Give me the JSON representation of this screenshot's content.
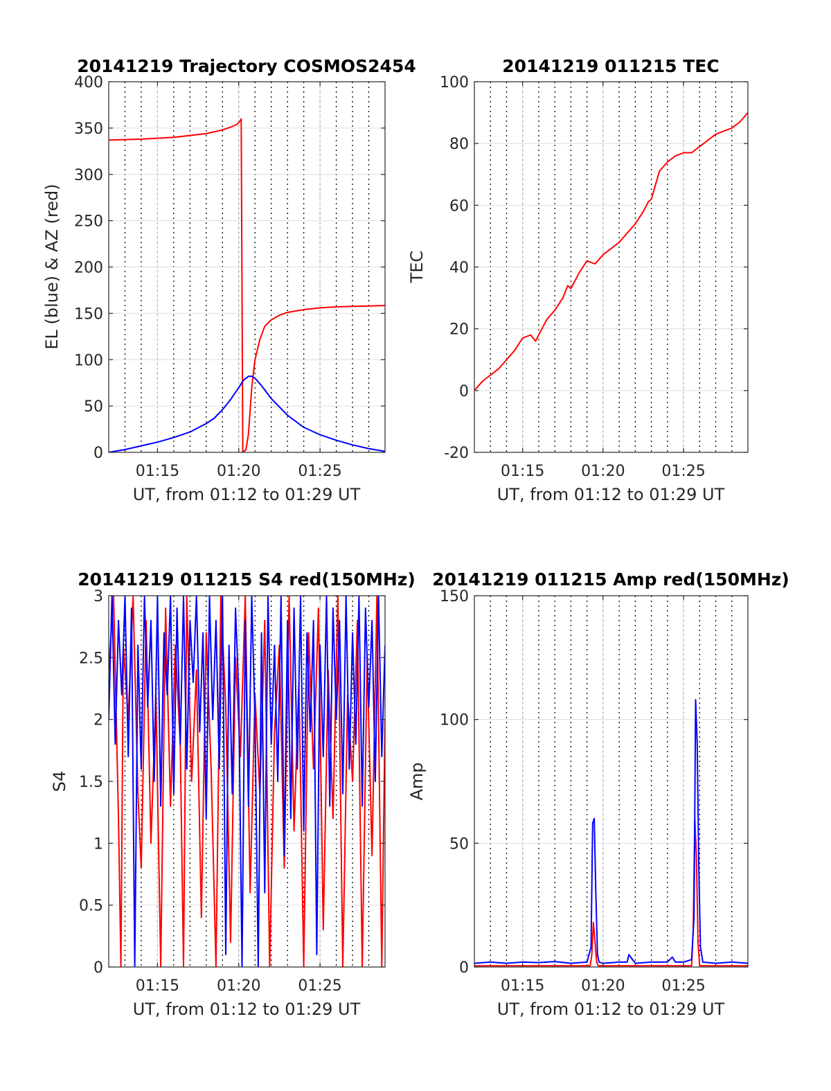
{
  "figure": {
    "background": "#ffffff"
  },
  "chart_data": [
    {
      "id": "trajectory",
      "type": "line",
      "title": "20141219 Trajectory COSMOS2454",
      "xlabel": "UT, from 01:12 to 01:29 UT",
      "ylabel": "EL (blue) & AZ (red)",
      "xlim": [
        0,
        17
      ],
      "ylim": [
        0,
        400
      ],
      "x_units": "minutes after 01:12 UT",
      "xticks": [
        3,
        8,
        13
      ],
      "xtick_labels": [
        "01:15",
        "01:20",
        "01:25"
      ],
      "yticks": [
        0,
        50,
        100,
        150,
        200,
        250,
        300,
        350,
        400
      ],
      "ytick_labels": [
        "0",
        "50",
        "100",
        "150",
        "200",
        "250",
        "300",
        "350",
        "400"
      ],
      "minute_gridlines": true,
      "grid": true,
      "series": [
        {
          "name": "AZ (red)",
          "color": "#ff0000",
          "x": [
            0,
            2,
            4,
            6,
            7,
            7.5,
            7.9,
            8.1,
            8.15,
            8.25,
            8.45,
            8.6,
            8.8,
            9.0,
            9.3,
            9.6,
            10.0,
            10.5,
            11.0,
            12.0,
            13.0,
            14.0,
            15.0,
            16.0,
            17.0
          ],
          "values": [
            337,
            338,
            340,
            344,
            348,
            351,
            354,
            358,
            360,
            0,
            3,
            20,
            70,
            100,
            122,
            136,
            143,
            148,
            151,
            154,
            156,
            157,
            157.5,
            158,
            158.5
          ]
        },
        {
          "name": "EL (blue)",
          "color": "#0000ff",
          "x": [
            0,
            1,
            2,
            3,
            4,
            5,
            6,
            6.5,
            7,
            7.5,
            8,
            8.3,
            8.6,
            8.8,
            9.0,
            9.4,
            10.0,
            11.0,
            12.0,
            13.0,
            14.0,
            15.0,
            16.0,
            17.0
          ],
          "values": [
            0,
            3,
            7,
            11,
            16,
            22,
            31,
            37,
            46,
            57,
            70,
            78,
            82,
            82,
            80,
            72,
            58,
            40,
            27,
            19,
            13,
            8,
            4,
            1
          ]
        }
      ]
    },
    {
      "id": "tec",
      "type": "line",
      "title": "20141219 011215 TEC",
      "xlabel": "UT, from 01:12 to 01:29 UT",
      "ylabel": "TEC",
      "xlim": [
        0,
        17
      ],
      "ylim": [
        -20,
        100
      ],
      "x_units": "minutes after 01:12 UT",
      "xticks": [
        3,
        8,
        13
      ],
      "xtick_labels": [
        "01:15",
        "01:20",
        "01:25"
      ],
      "yticks": [
        -20,
        0,
        20,
        40,
        60,
        80,
        100
      ],
      "ytick_labels": [
        "-20",
        "0",
        "20",
        "40",
        "60",
        "80",
        "100"
      ],
      "minute_gridlines": true,
      "grid": true,
      "series": [
        {
          "color": "#ff0000",
          "x": [
            0,
            0.5,
            1,
            1.5,
            2,
            2.5,
            3,
            3.5,
            3.8,
            4,
            4.5,
            5,
            5.5,
            5.8,
            6,
            6.5,
            7,
            7.5,
            8,
            8.5,
            9,
            9.5,
            10,
            10.5,
            10.8,
            11,
            11.5,
            12,
            12.5,
            13,
            13.5,
            14,
            14.5,
            15,
            15.5,
            16,
            16.5,
            17
          ],
          "values": [
            0,
            3,
            5,
            7,
            10,
            13,
            17,
            18,
            16,
            18,
            23,
            26,
            30,
            34,
            33,
            38,
            42,
            41,
            44,
            46,
            48,
            51,
            54,
            58,
            61,
            62,
            71,
            74,
            76,
            77,
            77,
            79,
            81,
            83,
            84,
            85,
            87,
            90
          ]
        }
      ]
    },
    {
      "id": "s4",
      "type": "line",
      "title": "20141219 011215 S4 red(150MHz)",
      "xlabel": "UT, from 01:12 to 01:29 UT",
      "ylabel": "S4",
      "xlim": [
        0,
        17
      ],
      "ylim": [
        0,
        3
      ],
      "x_units": "minutes after 01:12 UT",
      "xticks": [
        3,
        8,
        13
      ],
      "xtick_labels": [
        "01:15",
        "01:20",
        "01:25"
      ],
      "yticks": [
        0,
        0.5,
        1,
        1.5,
        2,
        2.5,
        3
      ],
      "ytick_labels": [
        "0",
        "0.5",
        "1",
        "1.5",
        "2",
        "2.5",
        "3"
      ],
      "minute_gridlines": true,
      "grid": true,
      "series": [
        {
          "color": "#ff0000",
          "x": [
            0,
            0.3,
            0.6,
            0.75,
            0.9,
            1.2,
            1.5,
            1.8,
            2.0,
            2.3,
            2.6,
            2.9,
            3.2,
            3.5,
            3.8,
            4.1,
            4.4,
            4.6,
            4.8,
            5.1,
            5.4,
            5.7,
            6.0,
            6.3,
            6.6,
            6.9,
            7.2,
            7.5,
            7.8,
            8.1,
            8.4,
            8.7,
            9.0,
            9.3,
            9.6,
            9.9,
            10.2,
            10.5,
            10.8,
            11.1,
            11.4,
            11.7,
            12.0,
            12.3,
            12.6,
            12.9,
            13.2,
            13.5,
            13.8,
            14.1,
            14.4,
            14.7,
            15.0,
            15.3,
            15.6,
            15.9,
            16.2,
            16.5,
            16.8,
            17.0
          ],
          "values": [
            2.4,
            3.0,
            1.2,
            0,
            2.6,
            2.0,
            3.0,
            1.4,
            0.8,
            2.8,
            1.0,
            2.2,
            0,
            2.9,
            1.3,
            2.6,
            1.8,
            0,
            3.0,
            1.5,
            2.4,
            0.4,
            2.7,
            1.6,
            0,
            3.0,
            2.1,
            0.2,
            2.5,
            1.7,
            3.0,
            0.6,
            2.2,
            1.4,
            2.8,
            0,
            1.9,
            2.6,
            0.8,
            3.0,
            1.1,
            2.3,
            0,
            2.7,
            1.6,
            2.9,
            0.3,
            2.4,
            1.2,
            3.0,
            0,
            2.2,
            1.5,
            2.8,
            0,
            2.5,
            0.9,
            3.0,
            0,
            2.0
          ]
        },
        {
          "color": "#0000ff",
          "x": [
            0,
            0.2,
            0.4,
            0.6,
            0.8,
            1.0,
            1.2,
            1.4,
            1.6,
            1.8,
            2.0,
            2.2,
            2.4,
            2.6,
            2.8,
            3.0,
            3.2,
            3.4,
            3.6,
            3.8,
            4.0,
            4.2,
            4.4,
            4.6,
            4.8,
            5.0,
            5.2,
            5.4,
            5.6,
            5.8,
            6.0,
            6.2,
            6.4,
            6.6,
            6.8,
            7.0,
            7.2,
            7.4,
            7.6,
            7.8,
            8.0,
            8.2,
            8.4,
            8.6,
            8.8,
            9.0,
            9.2,
            9.4,
            9.6,
            9.8,
            10.0,
            10.2,
            10.4,
            10.6,
            10.8,
            11.0,
            11.2,
            11.4,
            11.6,
            11.8,
            12.0,
            12.2,
            12.4,
            12.6,
            12.8,
            13.0,
            13.2,
            13.4,
            13.6,
            13.8,
            14.0,
            14.2,
            14.4,
            14.6,
            14.8,
            15.0,
            15.2,
            15.4,
            15.6,
            15.8,
            16.0,
            16.2,
            16.4,
            16.6,
            16.8,
            17.0
          ],
          "values": [
            2.0,
            3.0,
            1.8,
            2.8,
            2.2,
            3.0,
            1.7,
            2.9,
            0,
            2.6,
            1.6,
            3.0,
            2.1,
            2.8,
            1.5,
            3.0,
            1.3,
            2.7,
            2.2,
            3.0,
            1.4,
            2.9,
            1.8,
            3.0,
            1.6,
            2.8,
            2.3,
            3.0,
            1.9,
            2.7,
            1.2,
            3.0,
            2.0,
            2.8,
            1.6,
            3.0,
            0.1,
            2.6,
            1.4,
            2.9,
            2.2,
            0,
            2.8,
            1.3,
            3.0,
            2.0,
            0,
            2.7,
            0.6,
            3.0,
            1.8,
            2.6,
            1.5,
            3.0,
            0.9,
            2.8,
            1.2,
            2.9,
            1.6,
            3.0,
            1.1,
            2.7,
            1.9,
            2.8,
            0.1,
            2.6,
            1.7,
            3.0,
            1.3,
            2.9,
            2.0,
            2.8,
            1.4,
            3.0,
            1.6,
            2.7,
            1.8,
            3.0,
            1.3,
            2.9,
            2.1,
            2.8,
            1.5,
            3.0,
            1.7,
            2.6
          ]
        }
      ]
    },
    {
      "id": "amp",
      "type": "line",
      "title": "20141219 011215 Amp red(150MHz)",
      "xlabel": "UT, from 01:12 to 01:29 UT",
      "ylabel": "Amp",
      "xlim": [
        0,
        17
      ],
      "ylim": [
        0,
        150
      ],
      "x_units": "minutes after 01:12 UT",
      "xticks": [
        3,
        8,
        13
      ],
      "xtick_labels": [
        "01:15",
        "01:20",
        "01:25"
      ],
      "yticks": [
        0,
        50,
        100,
        150
      ],
      "ytick_labels": [
        "0",
        "50",
        "100",
        "150"
      ],
      "minute_gridlines": true,
      "grid": true,
      "series": [
        {
          "color": "#ff0000",
          "x": [
            0,
            7.2,
            7.3,
            7.4,
            7.5,
            7.6,
            7.7,
            8.0,
            13.5,
            13.6,
            13.7,
            13.8,
            13.9,
            14.0,
            17.0
          ],
          "values": [
            0.5,
            0.5,
            5,
            18,
            10,
            2,
            0.5,
            0.5,
            0.5,
            15,
            60,
            45,
            10,
            0.5,
            0.5
          ]
        },
        {
          "color": "#0000ff",
          "x": [
            0,
            1,
            2,
            3,
            4,
            5,
            6,
            7,
            7.25,
            7.35,
            7.45,
            7.55,
            7.65,
            7.75,
            8,
            9,
            9.5,
            9.6,
            10,
            11,
            12,
            12.3,
            12.5,
            13,
            13.5,
            13.65,
            13.75,
            13.85,
            13.95,
            14.05,
            14.2,
            15,
            16,
            17
          ],
          "values": [
            1.5,
            2,
            1.5,
            2,
            1.8,
            2.2,
            1.5,
            2,
            8,
            58,
            60,
            30,
            5,
            2,
            1.5,
            2,
            2,
            5,
            1.5,
            2,
            2,
            4,
            2,
            2,
            3,
            20,
            108,
            90,
            40,
            8,
            2,
            1.5,
            2,
            1.5
          ]
        }
      ]
    }
  ]
}
